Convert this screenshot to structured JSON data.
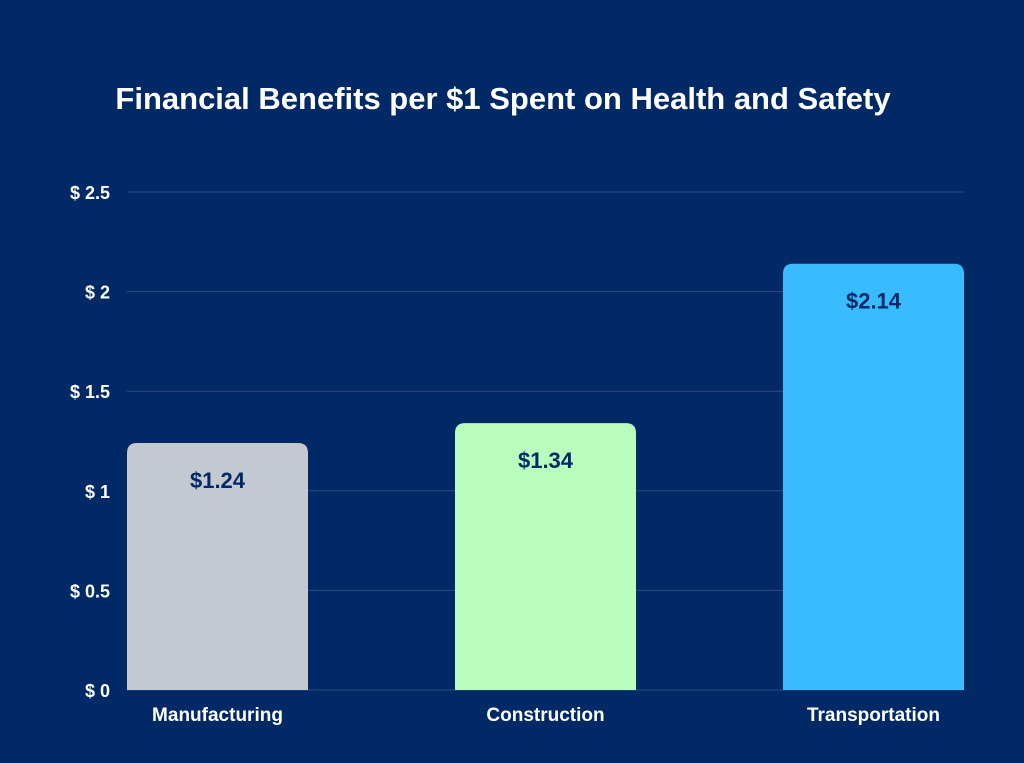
{
  "chart_data": {
    "type": "bar",
    "title": "Financial Benefits per $1 Spent on Health and Safety",
    "xlabel": "",
    "ylabel": "",
    "categories": [
      "Manufacturing",
      "Construction",
      "Transportation"
    ],
    "values": [
      1.24,
      1.34,
      2.14
    ],
    "data_labels": [
      "$1.24",
      "$1.34",
      "$2.14"
    ],
    "bar_colors": [
      "#c4c9d1",
      "#b8fcbe",
      "#38bcff"
    ],
    "ylim": [
      0,
      2.5
    ],
    "yticks": [
      0,
      0.5,
      1,
      1.5,
      2,
      2.5
    ],
    "ytick_labels": [
      "$ 0",
      "$ 0.5",
      "$ 1",
      "$ 1.5",
      "$ 2",
      "$ 2.5"
    ],
    "grid": true,
    "colors": {
      "background": "#002966",
      "text": "#ffffff",
      "data_label": "#002966",
      "grid": "#2c4a80"
    }
  }
}
